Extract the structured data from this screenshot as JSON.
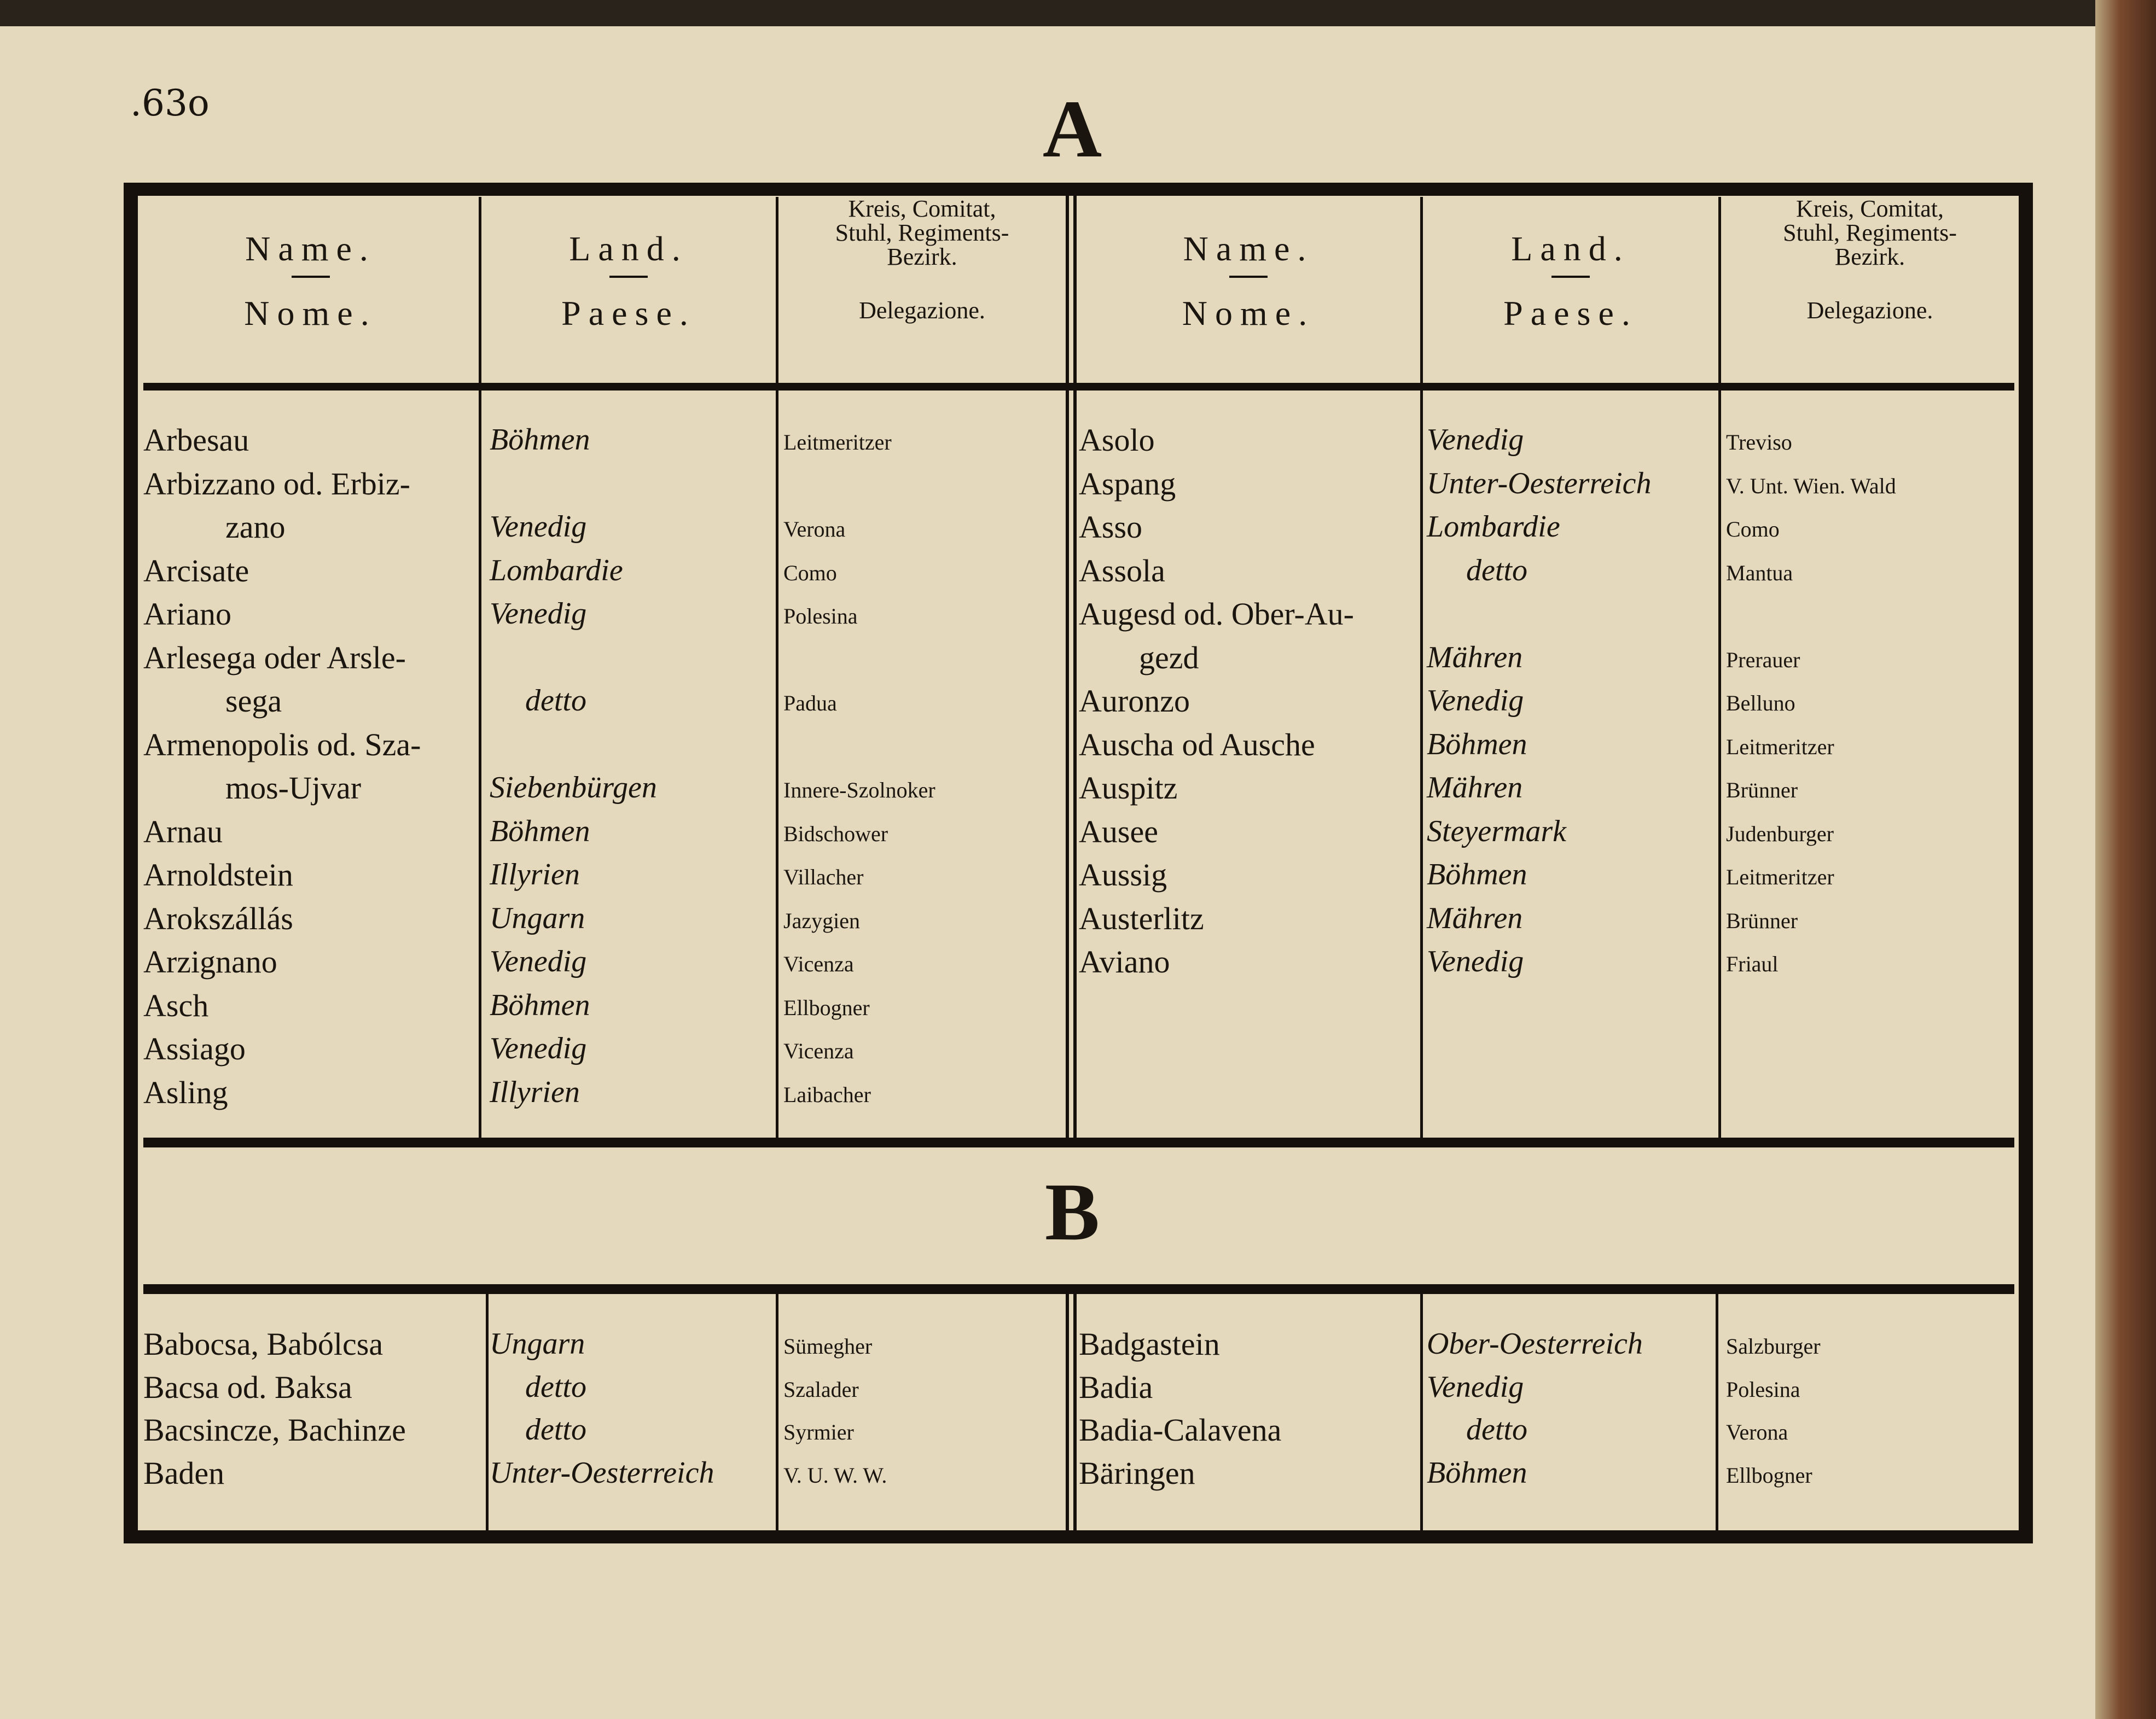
{
  "page_number": ".63o",
  "header": {
    "name_de": "Name.",
    "name_it": "Nome.",
    "land_de": "Land.",
    "land_it": "Paese.",
    "kreis_line1": "Kreis, Comitat,",
    "kreis_line2": "Stuhl, Regiments-",
    "kreis_line3": "Bezirk.",
    "kreis_it": "Delegazione."
  },
  "sections": [
    {
      "letter": "A",
      "left": [
        {
          "name": [
            "Arbesau"
          ],
          "land": "Böhmen",
          "kreis": "Leitmeritzer"
        },
        {
          "name": [
            "Arbizzano od. Erbiz-",
            "zano"
          ],
          "land": "Venedig",
          "kreis": "Verona"
        },
        {
          "name": [
            "Arcisate"
          ],
          "land": "Lombardie",
          "kreis": "Como"
        },
        {
          "name": [
            "Ariano"
          ],
          "land": "Venedig",
          "kreis": "Polesina"
        },
        {
          "name": [
            "Arlesega oder Arsle-",
            "sega"
          ],
          "land": "detto",
          "kreis": "Padua"
        },
        {
          "name": [
            "Armenopolis od. Sza-",
            "mos-Ujvar"
          ],
          "land": "Siebenbürgen",
          "kreis": "Innere-Szolnoker"
        },
        {
          "name": [
            "Arnau"
          ],
          "land": "Böhmen",
          "kreis": "Bidschower"
        },
        {
          "name": [
            "Arnoldstein"
          ],
          "land": "Illyrien",
          "kreis": "Villacher"
        },
        {
          "name": [
            "Arokszállás"
          ],
          "land": "Ungarn",
          "kreis": "Jazygien"
        },
        {
          "name": [
            "Arzignano"
          ],
          "land": "Venedig",
          "kreis": "Vicenza"
        },
        {
          "name": [
            "Asch"
          ],
          "land": "Böhmen",
          "kreis": "Ellbogner"
        },
        {
          "name": [
            "Assiago"
          ],
          "land": "Venedig",
          "kreis": "Vicenza"
        },
        {
          "name": [
            "Asling"
          ],
          "land": "Illyrien",
          "kreis": "Laibacher"
        }
      ],
      "right": [
        {
          "name": [
            "Asolo"
          ],
          "land": "Venedig",
          "kreis": "Treviso"
        },
        {
          "name": [
            "Aspang"
          ],
          "land": "Unter-Oesterreich",
          "kreis": "V. Unt. Wien. Wald"
        },
        {
          "name": [
            "Asso"
          ],
          "land": "Lombardie",
          "kreis": "Como"
        },
        {
          "name": [
            "Assola"
          ],
          "land": "detto",
          "kreis": "Mantua"
        },
        {
          "name": [
            "Augesd od. Ober-Au-",
            "gezd"
          ],
          "land": "Mähren",
          "kreis": "Prerauer"
        },
        {
          "name": [
            "Auronzo"
          ],
          "land": "Venedig",
          "kreis": "Belluno"
        },
        {
          "name": [
            "Auscha od Ausche"
          ],
          "land": "Böhmen",
          "kreis": "Leitmeritzer"
        },
        {
          "name": [
            "Auspitz"
          ],
          "land": "Mähren",
          "kreis": "Brünner"
        },
        {
          "name": [
            "Ausee"
          ],
          "land": "Steyermark",
          "kreis": "Judenburger"
        },
        {
          "name": [
            "Aussig"
          ],
          "land": "Böhmen",
          "kreis": "Leitmeritzer"
        },
        {
          "name": [
            "Austerlitz"
          ],
          "land": "Mähren",
          "kreis": "Brünner"
        },
        {
          "name": [
            "Aviano"
          ],
          "land": "Venedig",
          "kreis": "Friaul"
        }
      ]
    },
    {
      "letter": "B",
      "left": [
        {
          "name": [
            "Babocsa, Babólcsa"
          ],
          "land": "Ungarn",
          "kreis": "Sümegher"
        },
        {
          "name": [
            "Bacsa od. Baksa"
          ],
          "land": "detto",
          "kreis": "Szalader"
        },
        {
          "name": [
            "Bacsincze, Bachinze"
          ],
          "land": "detto",
          "kreis": "Syrmier"
        },
        {
          "name": [
            "Baden"
          ],
          "land": "Unter-Oesterreich",
          "kreis": "V. U. W. W."
        }
      ],
      "right": [
        {
          "name": [
            "Badgastein"
          ],
          "land": "Ober-Oesterreich",
          "kreis": "Salzburger"
        },
        {
          "name": [
            "Badia"
          ],
          "land": "Venedig",
          "kreis": "Polesina"
        },
        {
          "name": [
            "Badia-Calavena"
          ],
          "land": "detto",
          "kreis": "Verona"
        },
        {
          "name": [
            "Bäringen"
          ],
          "land": "Böhmen",
          "kreis": "Ellbogner"
        }
      ]
    }
  ]
}
